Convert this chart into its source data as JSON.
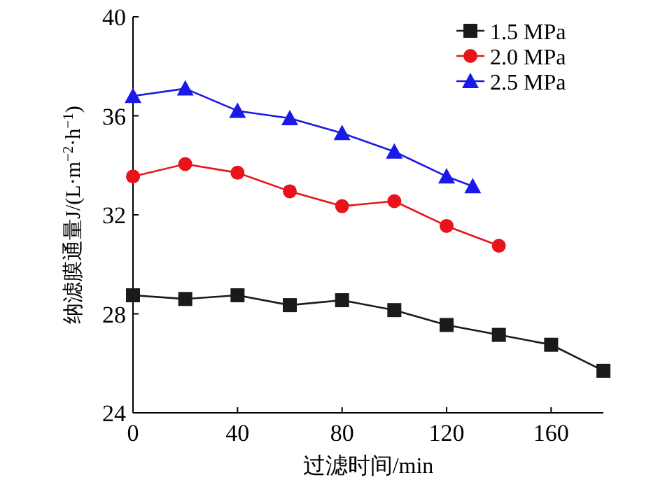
{
  "chart_data": {
    "type": "line",
    "xlabel": "过滤时间/min",
    "ylabel": "纳滤膜通量J/(L·m$^{−2}$·h$^{−1}$)",
    "xlim": [
      0,
      180
    ],
    "xticks": [
      0,
      40,
      80,
      120,
      160
    ],
    "ylim": [
      24,
      40
    ],
    "yticks": [
      24,
      28,
      32,
      36,
      40
    ],
    "grid": false,
    "legend": "top right",
    "series": [
      {
        "name": "1.5 MPa",
        "color": "#1a1a1a",
        "marker": "square",
        "x": [
          0,
          20,
          40,
          60,
          80,
          100,
          120,
          140,
          160,
          180
        ],
        "values": [
          28.75,
          28.6,
          28.75,
          28.35,
          28.55,
          28.15,
          27.55,
          27.15,
          26.75,
          25.7
        ]
      },
      {
        "name": "2.0 MPa",
        "color": "#e8141b",
        "marker": "circle",
        "x": [
          0,
          20,
          40,
          60,
          80,
          100,
          120,
          140
        ],
        "values": [
          33.55,
          34.05,
          33.7,
          32.95,
          32.35,
          32.55,
          31.55,
          30.75
        ]
      },
      {
        "name": "2.5 MPa",
        "color": "#1a1ae8",
        "marker": "triangle",
        "x": [
          0,
          20,
          40,
          60,
          80,
          100,
          120,
          130
        ],
        "values": [
          36.8,
          37.1,
          36.2,
          35.9,
          35.3,
          34.55,
          33.55,
          33.15
        ]
      }
    ]
  }
}
